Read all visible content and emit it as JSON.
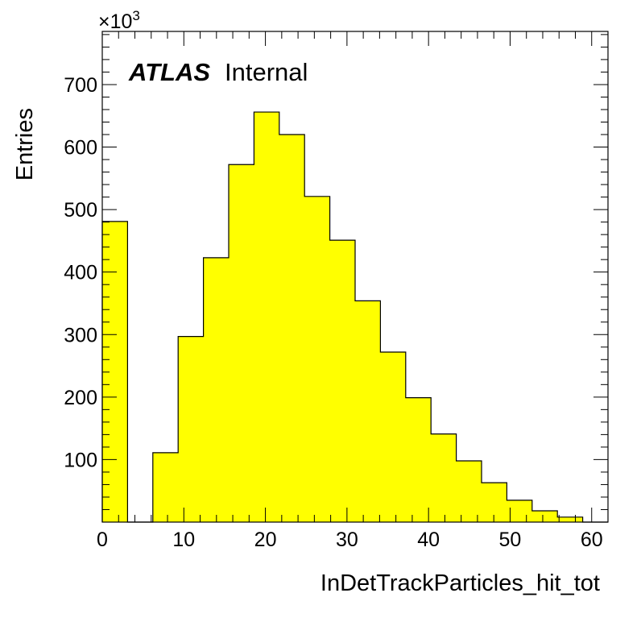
{
  "chart_data": {
    "type": "bar",
    "histogram": true,
    "xlabel": "InDetTrackParticles_hit_tot",
    "ylabel": "Entries",
    "y_multiplier_label": "×10",
    "y_multiplier_exponent": "3",
    "annotation": {
      "bold_text": "ATLAS",
      "text": "Internal"
    },
    "bar_color": "#ffff00",
    "edge_color": "#000000",
    "xlim": [
      0,
      62
    ],
    "ylim": [
      0,
      785
    ],
    "x_ticks": [
      0,
      10,
      20,
      30,
      40,
      50,
      60
    ],
    "y_ticks": [
      100,
      200,
      300,
      400,
      500,
      600,
      700
    ],
    "x_minor_step": 2,
    "y_minor_step": 20,
    "bin_width": 3.1,
    "bin_edges_start": 0,
    "values": [
      481,
      0,
      111,
      297,
      423,
      572,
      656,
      620,
      521,
      451,
      354,
      272,
      199,
      141,
      98,
      63,
      35,
      18,
      8,
      0
    ]
  }
}
